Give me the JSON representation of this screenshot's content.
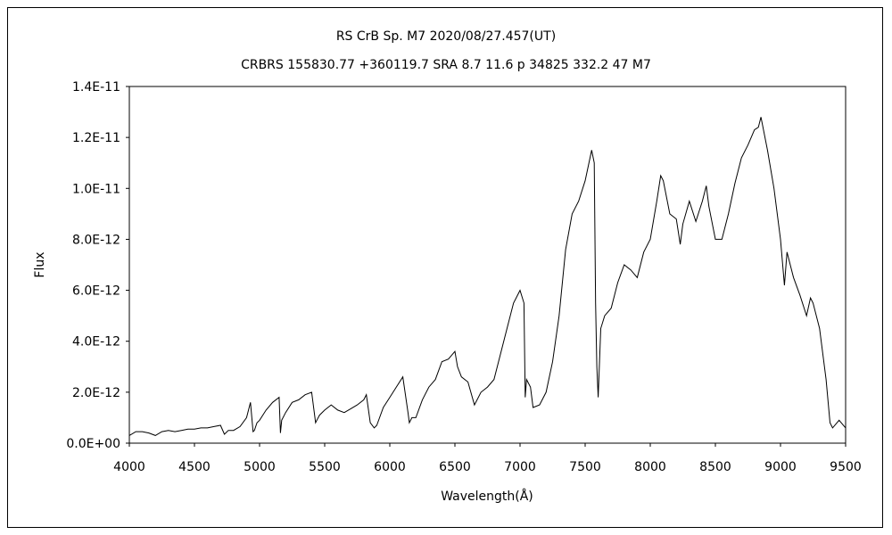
{
  "chart_data": {
    "type": "line",
    "title": "RS CrB   Sp. M7   2020/08/27.457(UT)",
    "subtitle": "CRBRS 155830.77 +360119.7 SRA 8.7 11.6 p 34825 332.2 47 M7",
    "xlabel": "Wavelength(Å)",
    "ylabel": "Flux",
    "xlim": [
      4000,
      9500
    ],
    "ylim": [
      0,
      1.4e-11
    ],
    "x_ticks": [
      "4000",
      "4500",
      "5000",
      "5500",
      "6000",
      "6500",
      "7000",
      "7500",
      "8000",
      "8500",
      "9000",
      "9500"
    ],
    "y_ticks": [
      "0.0E+00",
      "2.0E-12",
      "4.0E-12",
      "6.0E-12",
      "8.0E-12",
      "1.0E-11",
      "1.2E-11",
      "1.4E-11"
    ],
    "grid": false,
    "legend": "none",
    "line_color": "#000000",
    "series": [
      {
        "x": [
          4000,
          4050,
          4100,
          4150,
          4200,
          4250,
          4300,
          4350,
          4400,
          4450,
          4500,
          4550,
          4600,
          4650,
          4700,
          4730,
          4760,
          4800,
          4850,
          4900,
          4930,
          4950,
          4960,
          4980,
          5000,
          5050,
          5100,
          5150,
          5160,
          5170,
          5200,
          5250,
          5300,
          5350,
          5400,
          5430,
          5440,
          5460,
          5500,
          5550,
          5600,
          5650,
          5700,
          5750,
          5800,
          5820,
          5850,
          5880,
          5900,
          5950,
          6000,
          6050,
          6100,
          6140,
          6150,
          6170,
          6200,
          6250,
          6300,
          6350,
          6400,
          6450,
          6500,
          6520,
          6550,
          6600,
          6650,
          6700,
          6750,
          6800,
          6850,
          6900,
          6950,
          7000,
          7030,
          7040,
          7050,
          7080,
          7100,
          7150,
          7200,
          7250,
          7300,
          7350,
          7400,
          7450,
          7500,
          7550,
          7570,
          7580,
          7590,
          7600,
          7620,
          7650,
          7700,
          7750,
          7800,
          7850,
          7900,
          7950,
          8000,
          8050,
          8080,
          8100,
          8150,
          8200,
          8230,
          8250,
          8300,
          8350,
          8400,
          8430,
          8450,
          8500,
          8550,
          8600,
          8650,
          8700,
          8750,
          8800,
          8830,
          8850,
          8900,
          8950,
          9000,
          9030,
          9050,
          9100,
          9150,
          9200,
          9230,
          9250,
          9300,
          9350,
          9380,
          9400,
          9450,
          9500
        ],
        "y": [
          3e-13,
          4.5e-13,
          4.5e-13,
          4e-13,
          3e-13,
          4.5e-13,
          5e-13,
          4.5e-13,
          5e-13,
          5.5e-13,
          5.5e-13,
          6e-13,
          6e-13,
          6.5e-13,
          7e-13,
          3.5e-13,
          5e-13,
          5e-13,
          6.5e-13,
          1e-12,
          1.6e-12,
          4.5e-13,
          5e-13,
          8e-13,
          9e-13,
          1.3e-12,
          1.6e-12,
          1.8e-12,
          4e-13,
          9e-13,
          1.2e-12,
          1.6e-12,
          1.7e-12,
          1.9e-12,
          2e-12,
          8e-13,
          9e-13,
          1.1e-12,
          1.3e-12,
          1.5e-12,
          1.3e-12,
          1.2e-12,
          1.35e-12,
          1.5e-12,
          1.7e-12,
          1.9e-12,
          8e-13,
          6e-13,
          7e-13,
          1.4e-12,
          1.8e-12,
          2.2e-12,
          2.6e-12,
          1.2e-12,
          8e-13,
          1e-12,
          1e-12,
          1.7e-12,
          2.2e-12,
          2.5e-12,
          3.2e-12,
          3.3e-12,
          3.6e-12,
          3e-12,
          2.6e-12,
          2.4e-12,
          1.5e-12,
          2e-12,
          2.2e-12,
          2.5e-12,
          3.5e-12,
          4.5e-12,
          5.5e-12,
          6e-12,
          5.5e-12,
          1.8e-12,
          2.5e-12,
          2.2e-12,
          1.4e-12,
          1.5e-12,
          2e-12,
          3.2e-12,
          5e-12,
          7.6e-12,
          9e-12,
          9.5e-12,
          1.03e-11,
          1.15e-11,
          1.1e-11,
          5.5e-12,
          3e-12,
          1.8e-12,
          4.5e-12,
          5e-12,
          5.3e-12,
          6.3e-12,
          7e-12,
          6.8e-12,
          6.5e-12,
          7.5e-12,
          8e-12,
          9.5e-12,
          1.05e-11,
          1.03e-11,
          9e-12,
          8.8e-12,
          7.8e-12,
          8.6e-12,
          9.5e-12,
          8.7e-12,
          9.5e-12,
          1.01e-11,
          9.3e-12,
          8e-12,
          8e-12,
          9e-12,
          1.02e-11,
          1.12e-11,
          1.17e-11,
          1.23e-11,
          1.24e-11,
          1.28e-11,
          1.15e-11,
          1e-11,
          8e-12,
          6.2e-12,
          7.5e-12,
          6.5e-12,
          5.8e-12,
          5e-12,
          5.7e-12,
          5.5e-12,
          4.5e-12,
          2.5e-12,
          8e-13,
          6e-13,
          9e-13,
          6e-13
        ]
      }
    ]
  }
}
